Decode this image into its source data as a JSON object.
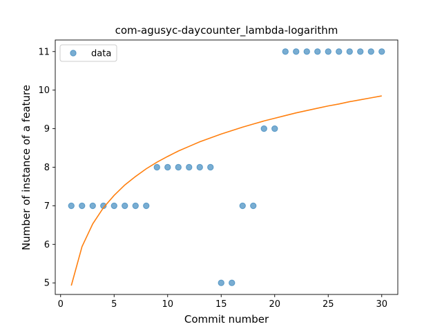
{
  "chart_data": {
    "type": "scatter",
    "title": "com-agusyc-daycounter_lambda-logarithm",
    "xlabel": "Commit number",
    "ylabel": "Number of instance of a feature",
    "xlim": [
      -0.5,
      31.5
    ],
    "ylim": [
      4.7,
      11.3
    ],
    "xticks": [
      0,
      5,
      10,
      15,
      20,
      25,
      30
    ],
    "yticks": [
      5,
      6,
      7,
      8,
      9,
      10,
      11
    ],
    "grid": false,
    "legend": {
      "position": "upper-left"
    },
    "series": [
      {
        "name": "data",
        "kind": "scatter",
        "color": "#1f77b4",
        "x": [
          1,
          2,
          3,
          4,
          5,
          6,
          7,
          8,
          9,
          10,
          11,
          12,
          13,
          14,
          15,
          16,
          17,
          18,
          19,
          20,
          21,
          22,
          23,
          24,
          25,
          26,
          27,
          28,
          29,
          30
        ],
        "y": [
          7,
          7,
          7,
          7,
          7,
          7,
          7,
          7,
          8,
          8,
          8,
          8,
          8,
          8,
          5,
          5,
          7,
          7,
          9,
          9,
          11,
          11,
          11,
          11,
          11,
          11,
          11,
          11,
          11,
          11
        ]
      },
      {
        "kind": "line",
        "color": "#ff7f0e",
        "x": [
          1,
          2,
          3,
          4,
          5,
          6,
          7,
          8,
          9,
          10,
          11,
          12,
          13,
          14,
          15,
          16,
          17,
          18,
          19,
          20,
          21,
          22,
          23,
          24,
          25,
          26,
          27,
          28,
          29,
          30
        ],
        "y": [
          4.93,
          5.94,
          6.53,
          6.95,
          7.27,
          7.54,
          7.76,
          7.96,
          8.13,
          8.28,
          8.42,
          8.54,
          8.66,
          8.76,
          8.86,
          8.95,
          9.04,
          9.12,
          9.2,
          9.27,
          9.34,
          9.41,
          9.47,
          9.53,
          9.59,
          9.64,
          9.7,
          9.75,
          9.8,
          9.85
        ]
      }
    ]
  }
}
